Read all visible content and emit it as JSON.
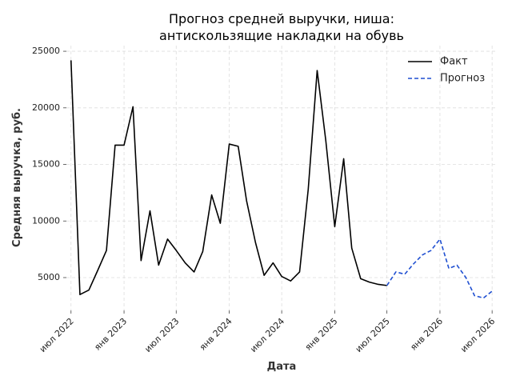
{
  "chart_data": {
    "type": "line",
    "title_lines": [
      "Прогноз средней выручки, ниша:",
      "антискользящие накладки на обувь"
    ],
    "xlabel": "Дата",
    "ylabel": "Средняя выручка, руб.",
    "x_domain": [
      "2022-06-15",
      "2026-07-20"
    ],
    "ylim": [
      2100,
      25500
    ],
    "yticks": [
      5000,
      10000,
      15000,
      20000,
      25000
    ],
    "xticks": [
      {
        "date": "2022-07-01",
        "label": "июл 2022"
      },
      {
        "date": "2023-01-01",
        "label": "янв 2023"
      },
      {
        "date": "2023-07-01",
        "label": "июл 2023"
      },
      {
        "date": "2024-01-01",
        "label": "янв 2024"
      },
      {
        "date": "2024-07-01",
        "label": "июл 2024"
      },
      {
        "date": "2025-01-01",
        "label": "янв 2025"
      },
      {
        "date": "2025-07-01",
        "label": "июл 2025"
      },
      {
        "date": "2026-01-01",
        "label": "янв 2026"
      },
      {
        "date": "2026-07-01",
        "label": "июл 2026"
      }
    ],
    "grid": true,
    "legend_position": "top-right",
    "series": [
      {
        "name": "Факт",
        "color": "#000000",
        "style": "solid",
        "points": [
          [
            "2022-07-01",
            24200
          ],
          [
            "2022-08-01",
            3500
          ],
          [
            "2022-09-01",
            3900
          ],
          [
            "2022-10-01",
            5600
          ],
          [
            "2022-11-01",
            7400
          ],
          [
            "2022-12-01",
            16700
          ],
          [
            "2023-01-01",
            16700
          ],
          [
            "2023-02-01",
            20100
          ],
          [
            "2023-03-01",
            6500
          ],
          [
            "2023-04-01",
            10900
          ],
          [
            "2023-05-01",
            6100
          ],
          [
            "2023-06-01",
            8400
          ],
          [
            "2023-07-01",
            7400
          ],
          [
            "2023-08-01",
            6300
          ],
          [
            "2023-09-01",
            5500
          ],
          [
            "2023-10-01",
            7300
          ],
          [
            "2023-11-01",
            12300
          ],
          [
            "2023-12-01",
            9800
          ],
          [
            "2024-01-01",
            16800
          ],
          [
            "2024-02-01",
            16600
          ],
          [
            "2024-03-01",
            11800
          ],
          [
            "2024-04-01",
            8100
          ],
          [
            "2024-05-01",
            5200
          ],
          [
            "2024-06-01",
            6300
          ],
          [
            "2024-07-01",
            5100
          ],
          [
            "2024-08-01",
            4700
          ],
          [
            "2024-09-01",
            5500
          ],
          [
            "2024-10-01",
            12800
          ],
          [
            "2024-11-01",
            23300
          ],
          [
            "2024-12-01",
            17100
          ],
          [
            "2025-01-01",
            9500
          ],
          [
            "2025-02-01",
            15500
          ],
          [
            "2025-03-01",
            7600
          ],
          [
            "2025-04-01",
            4900
          ],
          [
            "2025-05-01",
            4600
          ],
          [
            "2025-06-01",
            4400
          ],
          [
            "2025-07-01",
            4300
          ]
        ]
      },
      {
        "name": "Прогноз",
        "color": "#1f4fd1",
        "style": "dashed",
        "points": [
          [
            "2025-07-01",
            4300
          ],
          [
            "2025-08-01",
            5500
          ],
          [
            "2025-09-01",
            5300
          ],
          [
            "2025-10-01",
            6200
          ],
          [
            "2025-11-01",
            7000
          ],
          [
            "2025-12-01",
            7400
          ],
          [
            "2026-01-01",
            8400
          ],
          [
            "2026-02-01",
            5800
          ],
          [
            "2026-03-01",
            6100
          ],
          [
            "2026-04-01",
            5000
          ],
          [
            "2026-05-01",
            3400
          ],
          [
            "2026-06-01",
            3200
          ],
          [
            "2026-07-01",
            3800
          ]
        ]
      }
    ]
  }
}
